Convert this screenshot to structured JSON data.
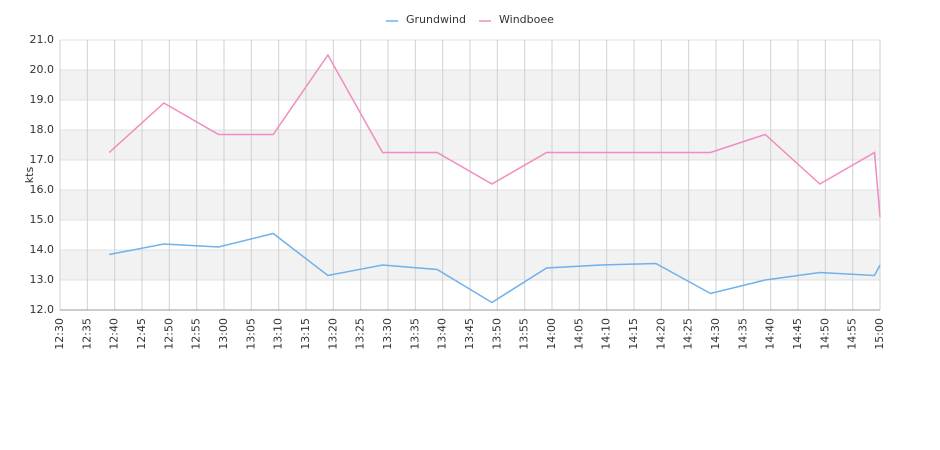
{
  "chart_data": {
    "type": "line",
    "y_label": "kts",
    "x": [
      "12:39",
      "12:49",
      "12:59",
      "13:09",
      "13:19",
      "13:29",
      "13:39",
      "13:49",
      "13:59",
      "14:09",
      "14:19",
      "14:29",
      "14:39",
      "14:49",
      "14:59",
      "15:00"
    ],
    "series": [
      {
        "name": "Grundwind",
        "color": "#6fb1ea",
        "values": [
          13.85,
          14.2,
          14.1,
          14.55,
          13.15,
          13.5,
          13.35,
          12.25,
          13.4,
          13.5,
          13.55,
          12.55,
          13.0,
          13.25,
          13.15,
          13.5
        ]
      },
      {
        "name": "Windboee",
        "color": "#f08cbf",
        "values": [
          17.25,
          18.9,
          17.85,
          17.85,
          20.5,
          17.25,
          17.25,
          16.2,
          17.25,
          17.25,
          17.25,
          17.25,
          17.85,
          16.2,
          17.25,
          15.1
        ]
      }
    ],
    "xlim": [
      "12:30",
      "15:00"
    ],
    "xticks": [
      "12:30",
      "12:35",
      "12:40",
      "12:45",
      "12:50",
      "12:55",
      "13:00",
      "13:05",
      "13:10",
      "13:15",
      "13:20",
      "13:25",
      "13:30",
      "13:35",
      "13:40",
      "13:45",
      "13:50",
      "13:55",
      "14:00",
      "14:05",
      "14:10",
      "14:15",
      "14:20",
      "14:25",
      "14:30",
      "14:35",
      "14:40",
      "14:45",
      "14:50",
      "14:55",
      "15:00"
    ],
    "ylim": [
      12,
      21
    ],
    "yticks": [
      {
        "value": 12,
        "label": "12.0"
      },
      {
        "value": 13,
        "label": "13.0"
      },
      {
        "value": 14,
        "label": "14.0"
      },
      {
        "value": 15,
        "label": "15.0"
      },
      {
        "value": 16,
        "label": "16.0"
      },
      {
        "value": 17,
        "label": "17.0"
      },
      {
        "value": 18,
        "label": "18.0"
      },
      {
        "value": 19,
        "label": "19.0"
      },
      {
        "value": 20,
        "label": "20.0"
      },
      {
        "value": 21,
        "label": "21.0"
      }
    ],
    "grid": true,
    "legend": "top"
  }
}
